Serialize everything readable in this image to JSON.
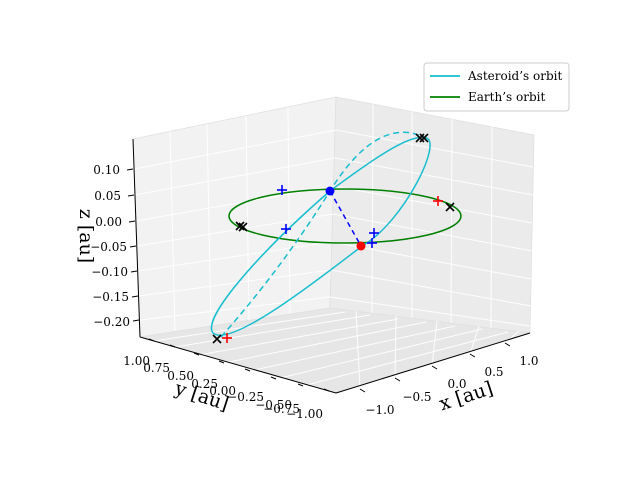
{
  "chart_data": {
    "type": "line",
    "projection": "3d",
    "grid": true,
    "legend_position": "top-right",
    "axes": {
      "x": {
        "label": "x [au]",
        "ticks": [
          "−1.0",
          "−0.5",
          "0.0",
          "0.5",
          "1.0"
        ]
      },
      "y": {
        "label": "y [au]",
        "ticks": [
          "1.00",
          "0.75",
          "0.50",
          "0.25",
          "0.00",
          "−0.25",
          "−0.50",
          "−0.75",
          "−1.00"
        ]
      },
      "z": {
        "label": "z [au]",
        "ticks": [
          "0.10",
          "0.05",
          "0.00",
          "−0.05",
          "−0.10",
          "−0.15",
          "−0.20"
        ]
      }
    },
    "series": [
      {
        "name": "Asteroid’s orbit",
        "color": "#17becf",
        "style": "solid, hidden half dashed"
      },
      {
        "name": "Earth’s orbit",
        "color": "#008000",
        "style": "solid"
      }
    ],
    "markers": {
      "asteroid_position": {
        "color": "#0000ff",
        "shape": "dot"
      },
      "earth_position": {
        "color": "#ff0000",
        "shape": "dot"
      },
      "connector_color": "#0000ff",
      "plus_blue_color": "#0000ff",
      "plus_red_color": "#ff0000",
      "x_mark_color": "#000000"
    }
  }
}
